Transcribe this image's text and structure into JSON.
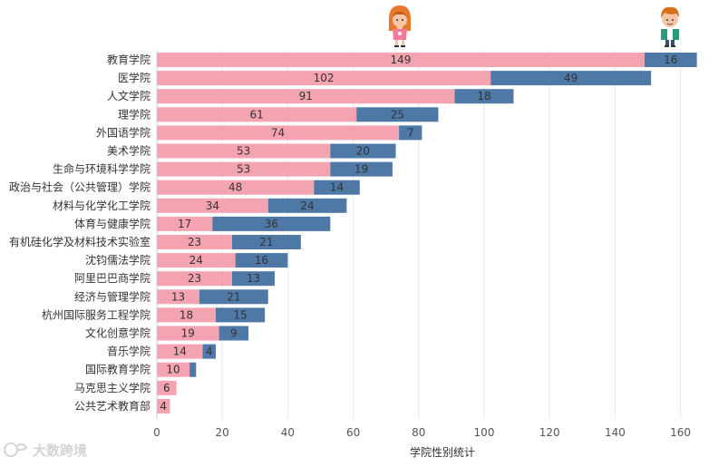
{
  "chart_data": {
    "type": "bar",
    "orientation": "horizontal",
    "stacked": true,
    "xlabel": "学院性别统计",
    "xlim": [
      0,
      165
    ],
    "xticks": [
      0,
      20,
      40,
      60,
      80,
      100,
      120,
      140,
      160
    ],
    "grid": true,
    "legend": "icons-top",
    "categories": [
      "教育学院",
      "医学院",
      "人文学院",
      "理学院",
      "外国语学院",
      "美术学院",
      "生命与环境科学学院",
      "政治与社会（公共管理）学院",
      "材料与化学化工学院",
      "体育与健康学院",
      "有机硅化学及材料技术实验室",
      "沈钧儒法学院",
      "阿里巴巴商学院",
      "经济与管理学院",
      "杭州国际服务工程学院",
      "文化创意学院",
      "音乐学院",
      "国际教育学院",
      "马克思主义学院",
      "公共艺术教育部"
    ],
    "series": [
      {
        "legend_icon": "girl-icon",
        "color": "#f4a3b1",
        "values": [
          149,
          102,
          91,
          61,
          74,
          53,
          53,
          48,
          34,
          17,
          23,
          24,
          23,
          13,
          18,
          19,
          14,
          10,
          6,
          4
        ],
        "labels": [
          "149",
          "102",
          "91",
          "61",
          "74",
          "53",
          "53",
          "48",
          "34",
          "17",
          "23",
          "24",
          "23",
          "13",
          "18",
          "19",
          "14",
          "10",
          "6",
          "4"
        ]
      },
      {
        "legend_icon": "boy-icon",
        "color": "#4e79a7",
        "values": [
          16,
          49,
          18,
          25,
          7,
          20,
          19,
          14,
          24,
          36,
          21,
          16,
          13,
          21,
          15,
          9,
          4,
          2,
          0,
          0
        ],
        "labels": [
          "16",
          "49",
          "18",
          "25",
          "7",
          "20",
          "19",
          "14",
          "24",
          "36",
          "21",
          "16",
          "13",
          "21",
          "15",
          "9",
          "4",
          "",
          "",
          ""
        ]
      }
    ]
  },
  "watermark": "大数跨境"
}
